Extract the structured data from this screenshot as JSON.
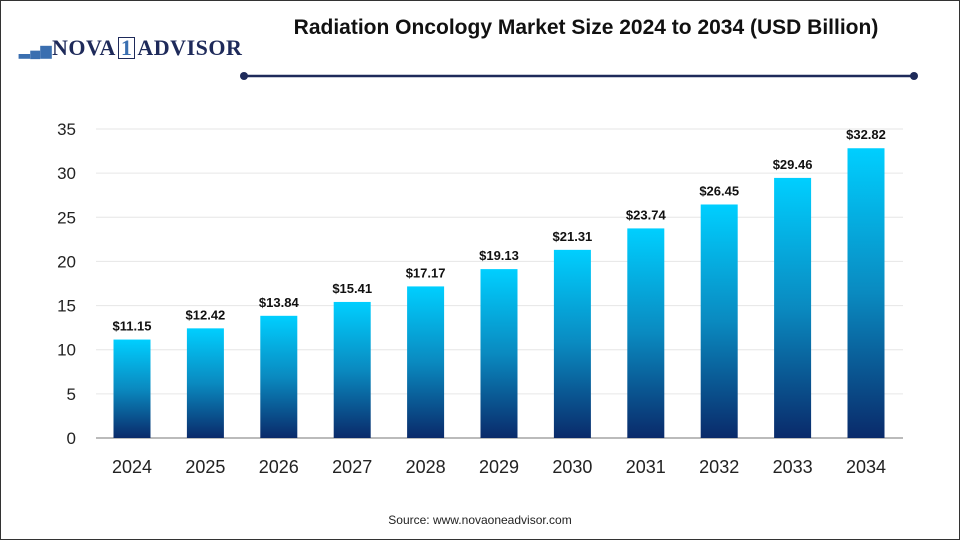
{
  "logo": {
    "text_pre": "NOVA",
    "text_num": "1",
    "text_post": "ADVISOR"
  },
  "chart_data": {
    "type": "bar",
    "title": "Radiation Oncology Market Size 2024 to 2034 (USD Billion)",
    "categories": [
      "2024",
      "2025",
      "2026",
      "2027",
      "2028",
      "2029",
      "2030",
      "2031",
      "2032",
      "2033",
      "2034"
    ],
    "values": [
      11.15,
      12.42,
      13.84,
      15.41,
      17.17,
      19.13,
      21.31,
      23.74,
      26.45,
      29.46,
      32.82
    ],
    "data_labels": [
      "$11.15",
      "$12.42",
      "$13.84",
      "$15.41",
      "$17.17",
      "$19.13",
      "$21.31",
      "$23.74",
      "$26.45",
      "$29.46",
      "$32.82"
    ],
    "ylim": [
      0,
      35
    ],
    "yticks": [
      0,
      5,
      10,
      15,
      20,
      25,
      30,
      35
    ],
    "grid": true,
    "xlabel": "",
    "ylabel": "",
    "colors": {
      "bar_top": "#00cfff",
      "bar_bottom": "#0a2a6a",
      "title_line": "#1e2a5a"
    }
  },
  "source": "Source: www.novaoneadvisor.com"
}
